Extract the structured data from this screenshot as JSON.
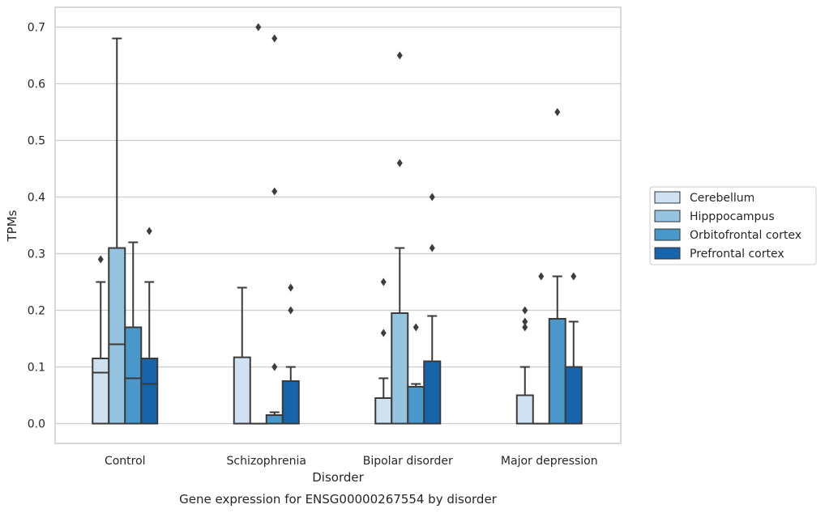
{
  "chart_data": {
    "type": "box",
    "title": "",
    "caption": "Gene expression for ENSG00000267554 by disorder",
    "xlabel": "Disorder",
    "ylabel": "TPMs",
    "ylim": [
      -0.035,
      0.735
    ],
    "yticks": [
      "0.0",
      "0.1",
      "0.2",
      "0.3",
      "0.4",
      "0.5",
      "0.6",
      "0.7"
    ],
    "grid": "horizontal",
    "legend_position": "right",
    "categories": [
      "Control",
      "Schizophrenia",
      "Bipolar disorder",
      "Major depression"
    ],
    "series": [
      {
        "name": "Cerebellum",
        "color": "#d0e1f2",
        "boxes": [
          {
            "q1": 0.0,
            "median": 0.09,
            "q3": 0.115,
            "whisker_low": 0.0,
            "whisker_high": 0.25,
            "outliers": [
              0.29
            ]
          },
          {
            "q1": 0.0,
            "median": 0.0,
            "q3": 0.117,
            "whisker_low": 0.0,
            "whisker_high": 0.24,
            "outliers": []
          },
          {
            "q1": 0.0,
            "median": 0.0,
            "q3": 0.045,
            "whisker_low": 0.0,
            "whisker_high": 0.08,
            "outliers": [
              0.16,
              0.25
            ]
          },
          {
            "q1": 0.0,
            "median": 0.0,
            "q3": 0.05,
            "whisker_low": 0.0,
            "whisker_high": 0.1,
            "outliers": [
              0.17,
              0.18,
              0.2
            ]
          }
        ]
      },
      {
        "name": "Hipppocampus",
        "color": "#94c4df",
        "boxes": [
          {
            "q1": 0.0,
            "median": 0.14,
            "q3": 0.31,
            "whisker_low": 0.0,
            "whisker_high": 0.68,
            "outliers": []
          },
          {
            "q1": 0.0,
            "median": 0.0,
            "q3": 0.0,
            "whisker_low": 0.0,
            "whisker_high": 0.0,
            "outliers": [
              0.7
            ]
          },
          {
            "q1": 0.0,
            "median": 0.0,
            "q3": 0.195,
            "whisker_low": 0.0,
            "whisker_high": 0.31,
            "outliers": [
              0.46,
              0.65
            ]
          },
          {
            "q1": 0.0,
            "median": 0.0,
            "q3": 0.0,
            "whisker_low": 0.0,
            "whisker_high": 0.0,
            "outliers": [
              0.26
            ]
          }
        ]
      },
      {
        "name": "Orbitofrontal cortex",
        "color": "#4a98c9",
        "boxes": [
          {
            "q1": 0.0,
            "median": 0.08,
            "q3": 0.17,
            "whisker_low": 0.0,
            "whisker_high": 0.32,
            "outliers": []
          },
          {
            "q1": 0.0,
            "median": 0.0,
            "q3": 0.015,
            "whisker_low": 0.0,
            "whisker_high": 0.02,
            "outliers": [
              0.1,
              0.41,
              0.68
            ]
          },
          {
            "q1": 0.0,
            "median": 0.0,
            "q3": 0.065,
            "whisker_low": 0.0,
            "whisker_high": 0.07,
            "outliers": [
              0.17
            ]
          },
          {
            "q1": 0.0,
            "median": 0.0,
            "q3": 0.185,
            "whisker_low": 0.0,
            "whisker_high": 0.26,
            "outliers": [
              0.55
            ]
          }
        ]
      },
      {
        "name": "Prefrontal cortex",
        "color": "#1764ab",
        "boxes": [
          {
            "q1": 0.0,
            "median": 0.07,
            "q3": 0.115,
            "whisker_low": 0.0,
            "whisker_high": 0.25,
            "outliers": [
              0.34
            ]
          },
          {
            "q1": 0.0,
            "median": 0.0,
            "q3": 0.075,
            "whisker_low": 0.0,
            "whisker_high": 0.1,
            "outliers": [
              0.2,
              0.24
            ]
          },
          {
            "q1": 0.0,
            "median": 0.0,
            "q3": 0.11,
            "whisker_low": 0.0,
            "whisker_high": 0.19,
            "outliers": [
              0.31,
              0.4
            ]
          },
          {
            "q1": 0.0,
            "median": 0.0,
            "q3": 0.1,
            "whisker_low": 0.0,
            "whisker_high": 0.18,
            "outliers": [
              0.26
            ]
          }
        ]
      }
    ]
  }
}
